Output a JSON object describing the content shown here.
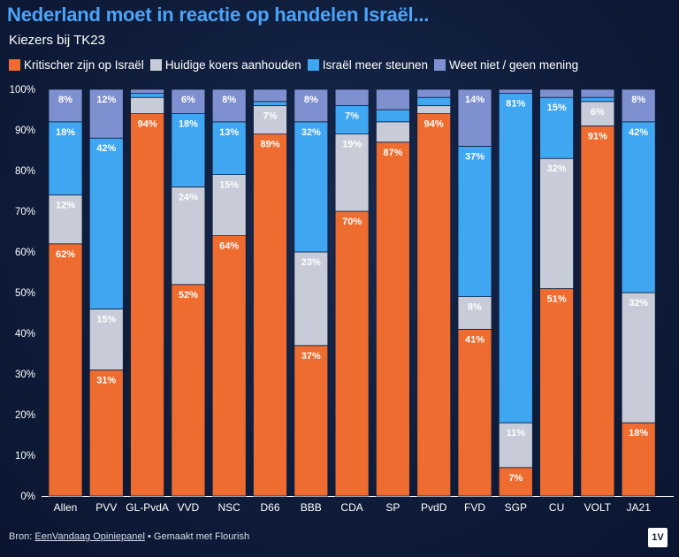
{
  "title": "Nederland moet in reactie op handelen Israël...",
  "subtitle": "Kiezers bij TK23",
  "footer": {
    "source_prefix": "Bron: ",
    "source_link": "EenVandaag Opiniepanel",
    "made_with": " • Gemaakt met Flourish"
  },
  "logo_text": "1V",
  "colors": {
    "critical": "#ee6c2f",
    "keep": "#c8ccd8",
    "support": "#3fa6f2",
    "unknown": "#7f90d0",
    "title": "#4da3f7",
    "background": "#0f1d3b"
  },
  "chart_data": {
    "type": "bar",
    "stacked": true,
    "title": "Nederland moet in reactie op handelen Israël...",
    "subtitle": "Kiezers bij TK23",
    "categories": [
      "Allen",
      "PVV",
      "GL-PvdA",
      "VVD",
      "NSC",
      "D66",
      "BBB",
      "CDA",
      "SP",
      "PvdD",
      "FVD",
      "SGP",
      "CU",
      "VOLT",
      "JA21"
    ],
    "ylim": [
      0,
      100
    ],
    "yticks": [
      "0%",
      "10%",
      "20%",
      "30%",
      "40%",
      "50%",
      "60%",
      "70%",
      "80%",
      "90%",
      "100%"
    ],
    "legend_position": "top-left",
    "grid": false,
    "series": [
      {
        "name": "Kritischer zijn op Israël",
        "color": "#ee6c2f",
        "values": [
          62,
          31,
          94,
          52,
          64,
          89,
          37,
          70,
          87,
          94,
          41,
          7,
          51,
          91,
          18
        ],
        "labels": [
          "62%",
          "31%",
          "94%",
          "52%",
          "64%",
          "89%",
          "37%",
          "70%",
          "87%",
          "94%",
          "41%",
          "7%",
          "51%",
          "91%",
          "18%"
        ]
      },
      {
        "name": "Huidige koers aanhouden",
        "color": "#c8ccd8",
        "values": [
          12,
          15,
          4,
          24,
          15,
          7,
          23,
          19,
          5,
          2,
          8,
          11,
          32,
          6,
          32
        ],
        "labels": [
          "12%",
          "15%",
          "",
          "24%",
          "15%",
          "7%",
          "23%",
          "19%",
          "",
          "",
          "8%",
          "11%",
          "32%",
          "6%",
          "32%"
        ]
      },
      {
        "name": "Israël meer steunen",
        "color": "#3fa6f2",
        "values": [
          18,
          42,
          1,
          18,
          13,
          1,
          32,
          7,
          3,
          2,
          37,
          81,
          15,
          1,
          42
        ],
        "labels": [
          "18%",
          "42%",
          "",
          "18%",
          "13%",
          "",
          "32%",
          "7%",
          "",
          "",
          "37%",
          "81%",
          "15%",
          "",
          "42%"
        ]
      },
      {
        "name": "Weet niet / geen mening",
        "color": "#7f90d0",
        "values": [
          8,
          12,
          1,
          6,
          8,
          3,
          8,
          4,
          5,
          2,
          14,
          1,
          2,
          2,
          8
        ],
        "labels": [
          "8%",
          "12%",
          "",
          "6%",
          "8%",
          "",
          "8%",
          "",
          "",
          "",
          "14%",
          "",
          "",
          "",
          "8%"
        ]
      }
    ]
  }
}
